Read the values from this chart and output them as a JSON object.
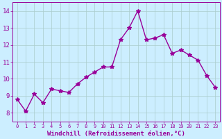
{
  "xlabel": "Windchill (Refroidissement éolien,°C)",
  "x": [
    0,
    1,
    2,
    3,
    4,
    5,
    6,
    7,
    8,
    9,
    10,
    11,
    12,
    13,
    14,
    15,
    16,
    17,
    18,
    19,
    20,
    21,
    22,
    23
  ],
  "y": [
    8.8,
    8.1,
    9.1,
    8.6,
    9.4,
    9.3,
    9.2,
    9.7,
    10.1,
    10.4,
    10.7,
    10.7,
    12.3,
    13.0,
    14.0,
    12.3,
    12.4,
    12.6,
    11.5,
    11.7,
    11.4,
    11.1,
    10.2,
    9.5
  ],
  "line_color": "#990099",
  "marker": "*",
  "marker_size": 4,
  "bg_color": "#cceeff",
  "grid_color": "#aacccc",
  "tick_color": "#990099",
  "label_color": "#990099",
  "ylim": [
    7.5,
    14.5
  ],
  "xlim": [
    -0.5,
    23.5
  ],
  "yticks": [
    8,
    9,
    10,
    11,
    12,
    13,
    14
  ],
  "xticks": [
    0,
    1,
    2,
    3,
    4,
    5,
    6,
    7,
    8,
    9,
    10,
    11,
    12,
    13,
    14,
    15,
    16,
    17,
    18,
    19,
    20,
    21,
    22,
    23
  ],
  "xlabel_fontsize": 6.5,
  "ylabel_fontsize": 6,
  "xtick_fontsize": 5.0,
  "ytick_fontsize": 6.5
}
